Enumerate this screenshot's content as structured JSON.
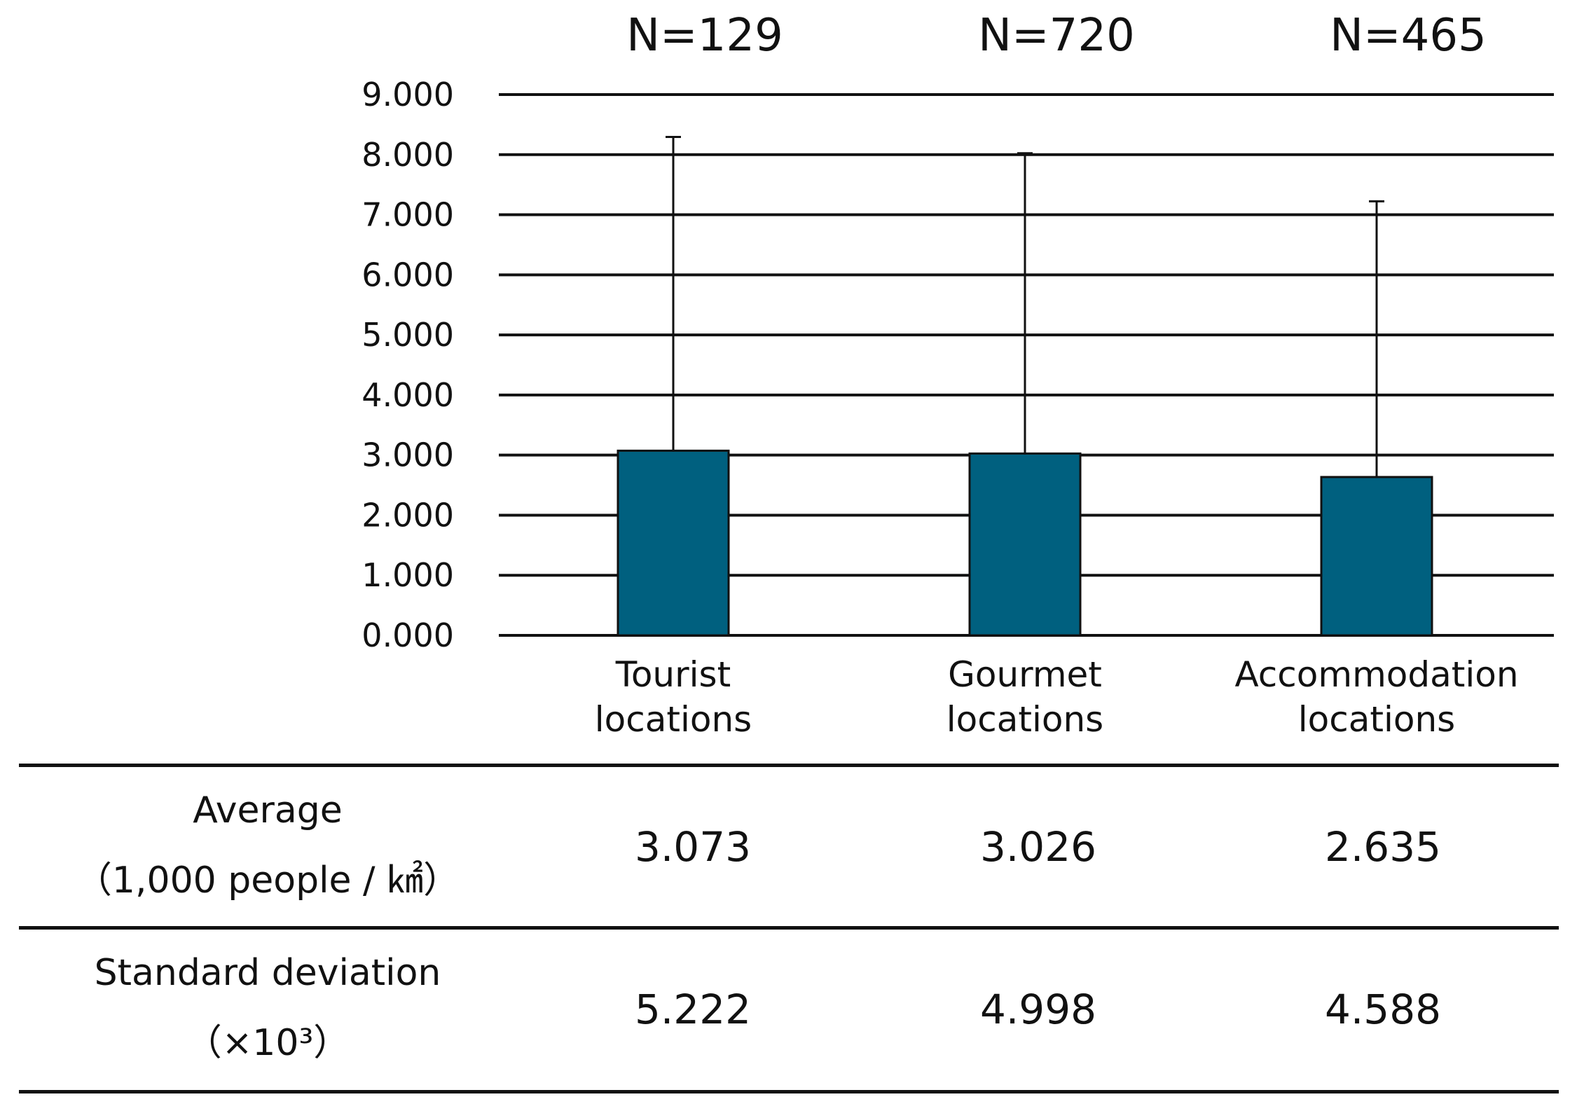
{
  "chart_data": {
    "type": "bar",
    "categories": [
      [
        "Tourist",
        "locations"
      ],
      [
        "Gourmet",
        "locations"
      ],
      [
        "Accommodation",
        "locations"
      ]
    ],
    "values": [
      3.073,
      3.026,
      2.635
    ],
    "error_plus": [
      5.222,
      4.998,
      4.588
    ],
    "n_labels": [
      "N=129",
      "N=720",
      "N=465"
    ],
    "ylim": [
      0,
      9
    ],
    "yticks": [
      "0.000",
      "1.000",
      "2.000",
      "3.000",
      "4.000",
      "5.000",
      "6.000",
      "7.000",
      "8.000",
      "9.000"
    ],
    "bar_color": "#00607F",
    "grid": true
  },
  "table": {
    "rows": [
      {
        "header": [
          "Average",
          "（1,000 people / ㎢）"
        ],
        "cells": [
          "3.073",
          "3.026",
          "2.635"
        ]
      },
      {
        "header": [
          "Standard deviation",
          "（×10³）"
        ],
        "cells": [
          "5.222",
          "4.998",
          "4.588"
        ]
      }
    ]
  }
}
